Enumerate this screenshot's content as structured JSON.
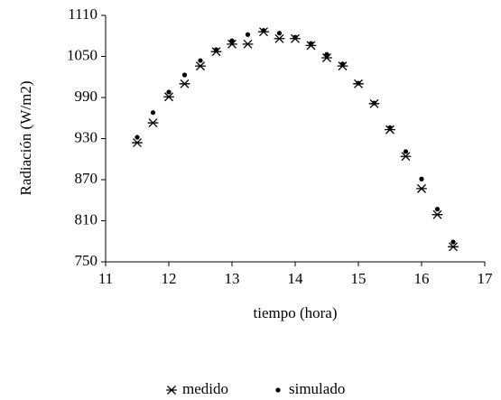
{
  "chart_data": {
    "type": "scatter",
    "x_label": "tiempo (hora)",
    "y_label": "Radiación (W/m2)",
    "x": [
      11.5,
      11.75,
      12,
      12.25,
      12.5,
      12.75,
      13,
      13.25,
      13.5,
      13.75,
      14,
      14.25,
      14.5,
      14.75,
      15,
      15.25,
      15.5,
      15.75,
      16,
      16.25,
      16.5
    ],
    "series": [
      {
        "name": "medido",
        "marker": "star",
        "color": "#000000",
        "values": [
          924,
          953,
          991,
          1010,
          1036,
          1057,
          1068,
          1068,
          1086,
          1076,
          1076,
          1066,
          1048,
          1036,
          1010,
          981,
          943,
          904,
          857,
          819,
          772
        ]
      },
      {
        "name": "simulado",
        "marker": "dot",
        "color": "#000000",
        "values": [
          932,
          968,
          998,
          1023,
          1044,
          1060,
          1073,
          1082,
          1088,
          1084,
          1078,
          1069,
          1053,
          1039,
          1011,
          982,
          946,
          911,
          871,
          827,
          779
        ]
      }
    ],
    "xlim": [
      11,
      17
    ],
    "xticks": [
      11,
      12,
      13,
      14,
      15,
      16,
      17
    ],
    "ylim": [
      750,
      1110
    ],
    "yticks": [
      750,
      810,
      870,
      930,
      990,
      1050,
      1110
    ],
    "grid": false,
    "legend": "bottom"
  }
}
